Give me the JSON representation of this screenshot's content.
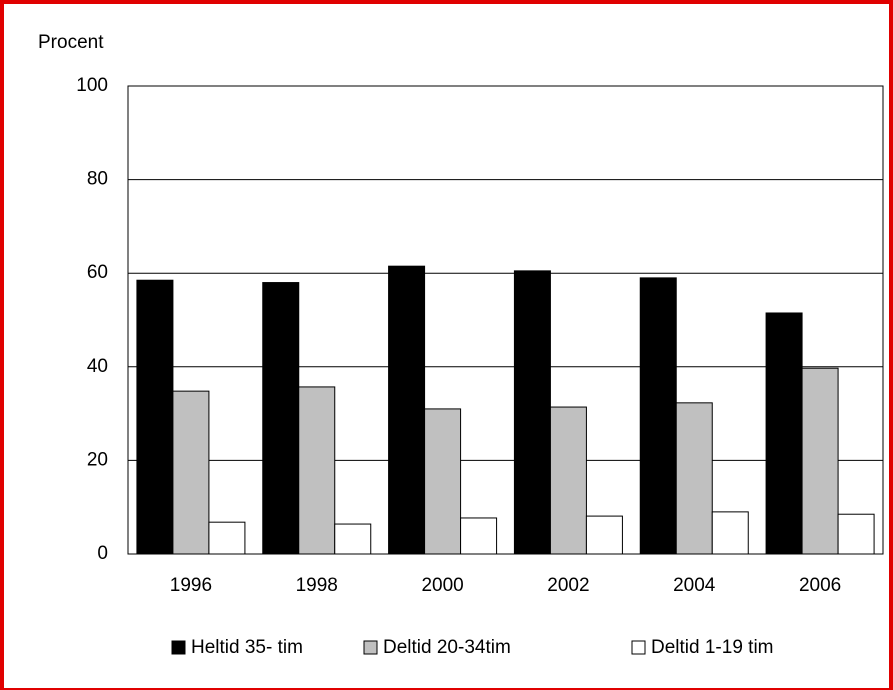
{
  "chart_data": {
    "type": "bar",
    "y_label": "Procent",
    "categories": [
      "1996",
      "1998",
      "2000",
      "2002",
      "2004",
      "2006"
    ],
    "series": [
      {
        "name": "Heltid 35- tim",
        "color": "#000000",
        "values": [
          58.5,
          58,
          61.5,
          60.5,
          59,
          51.5
        ]
      },
      {
        "name": "Deltid 20-34tim",
        "color": "#c0c0c0",
        "values": [
          34.8,
          35.7,
          31,
          31.4,
          32.3,
          39.7
        ]
      },
      {
        "name": "Deltid 1-19 tim",
        "color": "#ffffff",
        "values": [
          6.8,
          6.4,
          7.7,
          8.1,
          9,
          8.5
        ]
      }
    ],
    "ylim": [
      0,
      100
    ],
    "yticks": [
      0,
      20,
      40,
      60,
      80,
      100
    ],
    "grid": true,
    "legend": "bottom"
  }
}
